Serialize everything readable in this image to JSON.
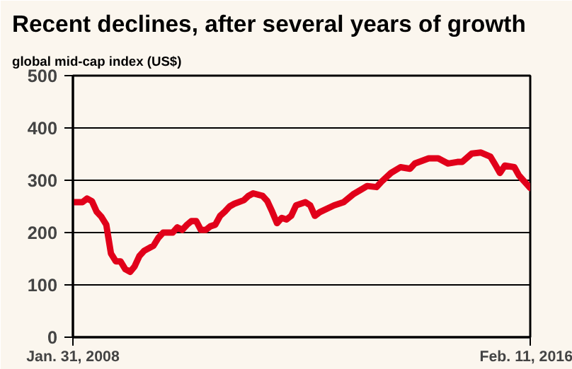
{
  "chart_data": {
    "type": "line",
    "title": "Recent declines, after several years of growth",
    "ylabel": "global mid-cap index (US$)",
    "x": [
      "2008-01-31",
      "2008-04",
      "2008-05",
      "2008-06",
      "2008-07",
      "2008-08",
      "2008-09",
      "2008-10",
      "2008-11",
      "2008-12",
      "2009-01",
      "2009-02",
      "2009-03",
      "2009-04",
      "2009-05",
      "2009-07",
      "2009-08",
      "2009-09",
      "2009-11",
      "2009-12",
      "2010-01",
      "2010-02",
      "2010-03",
      "2010-04",
      "2010-05",
      "2010-06",
      "2010-07",
      "2010-08",
      "2010-09",
      "2010-10",
      "2010-11",
      "2010-12",
      "2011-02",
      "2011-03",
      "2011-04",
      "2011-06",
      "2011-07",
      "2011-08",
      "2011-09",
      "2011-10",
      "2011-11",
      "2011-12",
      "2012-01",
      "2012-03",
      "2012-04",
      "2012-05",
      "2012-06",
      "2012-09",
      "2012-11",
      "2013-01",
      "2013-04",
      "2013-06",
      "2013-07",
      "2013-09",
      "2013-11",
      "2014-01",
      "2014-02",
      "2014-05",
      "2014-07",
      "2014-09",
      "2014-11",
      "2014-12",
      "2015-02",
      "2015-04",
      "2015-06",
      "2015-07",
      "2015-08",
      "2015-09",
      "2015-11",
      "2015-12",
      "2016-02-11"
    ],
    "series": [
      {
        "color": "#e1001a",
        "values": [
          258,
          258,
          265,
          260,
          240,
          230,
          215,
          160,
          145,
          145,
          130,
          125,
          135,
          155,
          165,
          175,
          190,
          200,
          200,
          210,
          205,
          215,
          222,
          222,
          205,
          205,
          212,
          215,
          232,
          240,
          250,
          255,
          262,
          270,
          275,
          270,
          260,
          240,
          218,
          228,
          225,
          232,
          252,
          258,
          252,
          232,
          239,
          252,
          258,
          273,
          289,
          287,
          297,
          314,
          325,
          322,
          332,
          342,
          342,
          332,
          335,
          335,
          351,
          353,
          345,
          330,
          314,
          328,
          325,
          309,
          285
        ]
      }
    ],
    "xlim": [
      "2008-01-31",
      "2016-02-11"
    ],
    "xticks": [
      {
        "value": "2008-01-31",
        "label": "Jan. 31, 2008"
      },
      {
        "value": "2016-02-11",
        "label": "Feb. 11, 2016"
      }
    ],
    "ylim": [
      0,
      500
    ],
    "yticks": [
      0,
      100,
      200,
      300,
      400,
      500
    ],
    "grid": "y",
    "marker": "none",
    "line_style": "solid"
  }
}
